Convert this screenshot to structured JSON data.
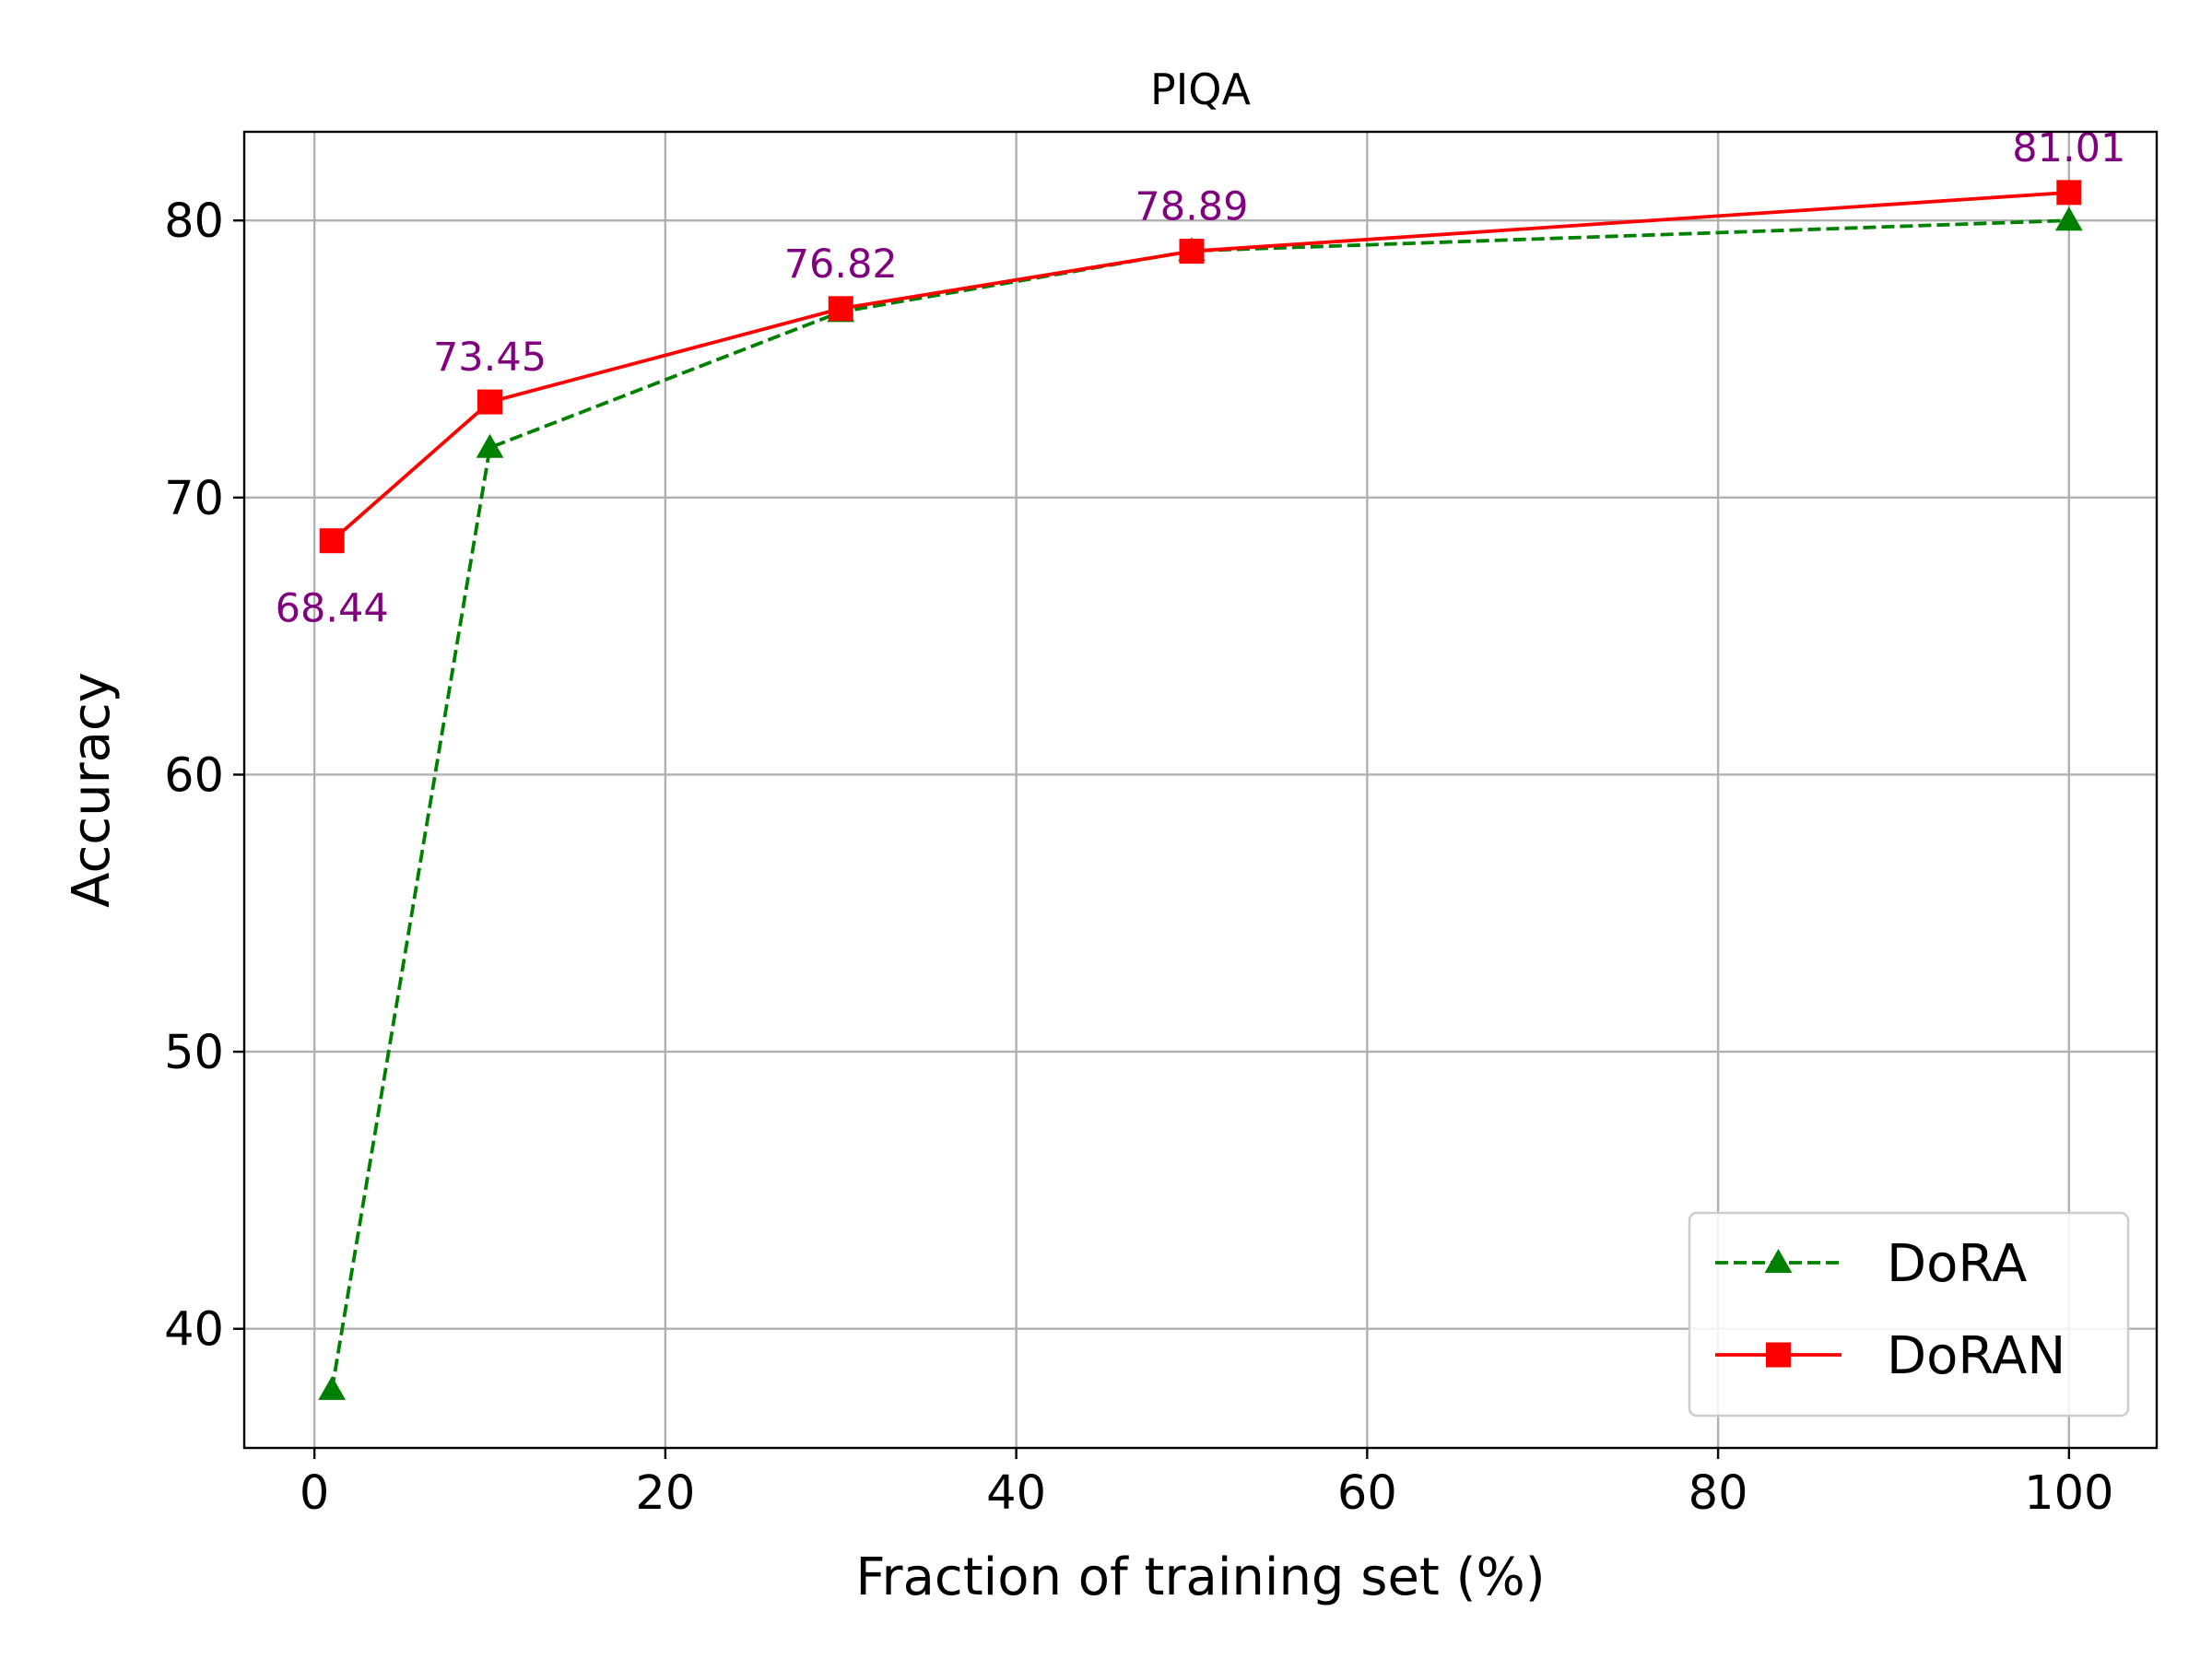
{
  "chart_data": {
    "type": "line",
    "title": "PIQA",
    "xlabel": "Fraction of training set (%)",
    "ylabel": "Accuracy",
    "xlim": [
      -4,
      105
    ],
    "ylim": [
      35.7,
      83.2
    ],
    "xticks": [
      0,
      20,
      40,
      60,
      80,
      100
    ],
    "yticks": [
      40,
      50,
      60,
      70,
      80
    ],
    "grid": true,
    "legend_position": "bottom-right",
    "series": [
      {
        "name": "DoRA",
        "x": [
          1,
          10,
          30,
          50,
          100
        ],
        "y": [
          37.8,
          71.8,
          76.7,
          78.9,
          80.0
        ],
        "color": "#008000",
        "line_style": "dashed",
        "marker": "triangle"
      },
      {
        "name": "DoRAN",
        "x": [
          1,
          10,
          30,
          50,
          100
        ],
        "y": [
          68.44,
          73.45,
          76.82,
          78.89,
          81.01
        ],
        "color": "#ff0000",
        "line_style": "solid",
        "marker": "square"
      }
    ],
    "annotations": [
      {
        "text": "68.44",
        "x": 1,
        "y": 68.44,
        "placement": "below"
      },
      {
        "text": "73.45",
        "x": 10,
        "y": 73.45,
        "placement": "above"
      },
      {
        "text": "76.82",
        "x": 30,
        "y": 76.82,
        "placement": "above"
      },
      {
        "text": "78.89",
        "x": 50,
        "y": 78.89,
        "placement": "above"
      },
      {
        "text": "81.01",
        "x": 100,
        "y": 81.01,
        "placement": "above"
      }
    ],
    "annotation_color": "#800080"
  }
}
